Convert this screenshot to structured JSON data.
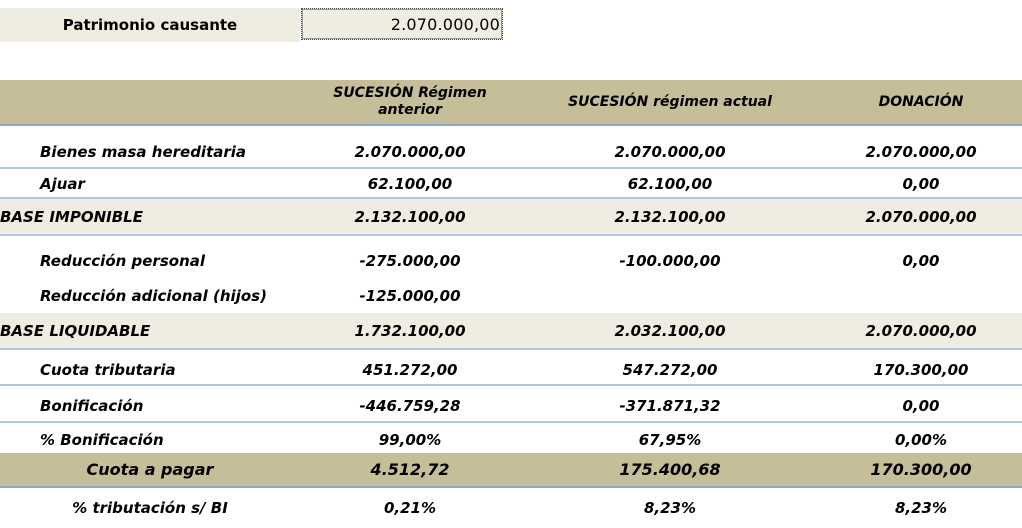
{
  "top": {
    "label": "Patrimonio causante",
    "value": "2.070.000,00"
  },
  "columns": [
    "",
    "SUCESIÓN Régimen anterior",
    "SUCESIÓN régimen actual",
    "DONACIÓN"
  ],
  "rows": [
    {
      "label": "Bienes masa hereditaria",
      "values": [
        "2.070.000,00",
        "2.070.000,00",
        "2.070.000,00"
      ]
    },
    {
      "label": "Ajuar",
      "values": [
        "62.100,00",
        "62.100,00",
        "0,00"
      ]
    },
    {
      "label": "BASE IMPONIBLE",
      "values": [
        "2.132.100,00",
        "2.132.100,00",
        "2.070.000,00"
      ]
    },
    {
      "label": "Reducción personal",
      "values": [
        "-275.000,00",
        "-100.000,00",
        "0,00"
      ]
    },
    {
      "label": "Reducción adicional (hijos)",
      "values": [
        "-125.000,00",
        "",
        ""
      ]
    },
    {
      "label": "BASE LIQUIDABLE",
      "values": [
        "1.732.100,00",
        "2.032.100,00",
        "2.070.000,00"
      ]
    },
    {
      "label": "Cuota tributaria",
      "values": [
        "451.272,00",
        "547.272,00",
        "170.300,00"
      ]
    },
    {
      "label": "Bonificación",
      "values": [
        "-446.759,28",
        "-371.871,32",
        "0,00"
      ]
    },
    {
      "label": "% Bonificación",
      "values": [
        "99,00%",
        "67,95%",
        "0,00%"
      ]
    },
    {
      "label": "Cuota a pagar",
      "values": [
        "4.512,72",
        "175.400,68",
        "170.300,00"
      ]
    },
    {
      "label": "% tributación s/ BI",
      "values": [
        "0,21%",
        "8,23%",
        "8,23%"
      ]
    }
  ]
}
